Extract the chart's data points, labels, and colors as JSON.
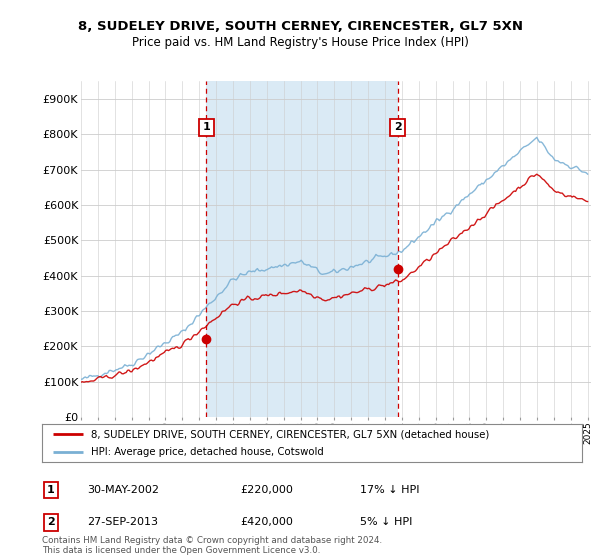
{
  "title": "8, SUDELEY DRIVE, SOUTH CERNEY, CIRENCESTER, GL7 5XN",
  "subtitle": "Price paid vs. HM Land Registry's House Price Index (HPI)",
  "ylim": [
    0,
    950000
  ],
  "yticks": [
    0,
    100000,
    200000,
    300000,
    400000,
    500000,
    600000,
    700000,
    800000,
    900000
  ],
  "ytick_labels": [
    "£0",
    "£100K",
    "£200K",
    "£300K",
    "£400K",
    "£500K",
    "£600K",
    "£700K",
    "£800K",
    "£900K"
  ],
  "sale1_date": 2002.42,
  "sale1_price": 220000,
  "sale2_date": 2013.75,
  "sale2_price": 420000,
  "legend_line1": "8, SUDELEY DRIVE, SOUTH CERNEY, CIRENCESTER, GL7 5XN (detached house)",
  "legend_line2": "HPI: Average price, detached house, Cotswold",
  "table_entries": [
    {
      "num": "1",
      "date": "30-MAY-2002",
      "price": "£220,000",
      "hpi": "17% ↓ HPI"
    },
    {
      "num": "2",
      "date": "27-SEP-2013",
      "price": "£420,000",
      "hpi": "5% ↓ HPI"
    }
  ],
  "footer1": "Contains HM Land Registry data © Crown copyright and database right 2024.",
  "footer2": "This data is licensed under the Open Government Licence v3.0.",
  "property_color": "#cc0000",
  "hpi_color": "#7ab0d4",
  "shade_color": "#daeaf5",
  "background_color": "#ffffff",
  "plot_bg_color": "#ffffff"
}
